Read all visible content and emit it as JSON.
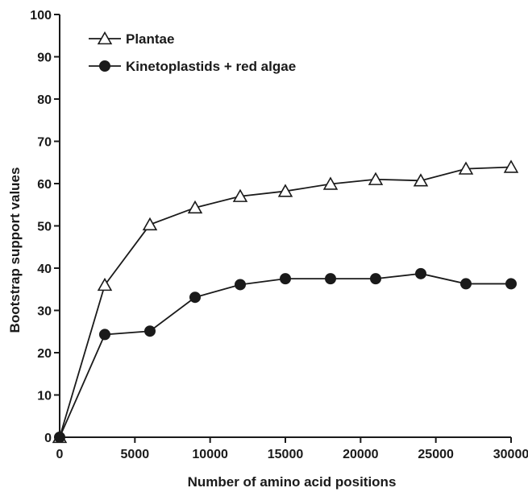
{
  "chart_data": {
    "type": "line",
    "title": "",
    "xlabel": "Number of amino acid positions",
    "ylabel": "Bootstrap support values",
    "xlim": [
      0,
      30000
    ],
    "ylim": [
      0,
      100
    ],
    "xticks": [
      0,
      5000,
      10000,
      15000,
      20000,
      25000,
      30000
    ],
    "yticks": [
      0,
      10,
      20,
      30,
      40,
      50,
      60,
      70,
      80,
      90,
      100
    ],
    "grid": false,
    "legend_position": "top-left",
    "x": [
      0,
      3000,
      6000,
      9000,
      12000,
      15000,
      18000,
      21000,
      24000,
      27000,
      30000
    ],
    "series": [
      {
        "name": "Plantae",
        "marker": "open-triangle",
        "color": "#1a1a1a",
        "values": [
          0,
          36,
          50.3,
          54.3,
          57,
          58.2,
          59.9,
          61,
          60.7,
          63.5,
          63.9
        ]
      },
      {
        "name": "Kinetoplastids + red algae",
        "marker": "filled-circle",
        "color": "#1a1a1a",
        "values": [
          0,
          24.3,
          25.1,
          33.1,
          36.1,
          37.5,
          37.5,
          37.5,
          38.7,
          36.3,
          36.3
        ]
      }
    ]
  }
}
